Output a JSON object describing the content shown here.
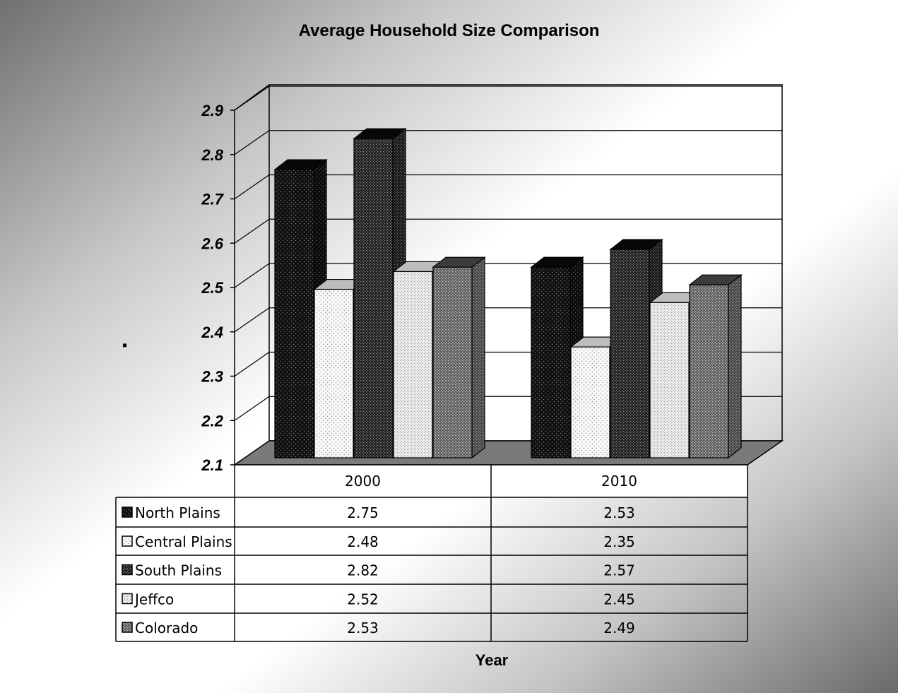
{
  "chart_data": {
    "type": "bar",
    "title": "Average Household Size Comparison",
    "xlabel": "Year",
    "ylabel": "",
    "categories": [
      "2000",
      "2010"
    ],
    "series": [
      {
        "name": "North Plains",
        "values": [
          2.75,
          2.53
        ],
        "pattern": "dark-dots"
      },
      {
        "name": "Central Plains",
        "values": [
          2.48,
          2.35
        ],
        "pattern": "light-dots"
      },
      {
        "name": "South Plains",
        "values": [
          2.82,
          2.57
        ],
        "pattern": "dark-grid"
      },
      {
        "name": "Jeffco",
        "values": [
          2.52,
          2.45
        ],
        "pattern": "light-grid"
      },
      {
        "name": "Colorado",
        "values": [
          2.53,
          2.49
        ],
        "pattern": "mid-grid"
      }
    ],
    "value_labels": [
      [
        "2.75",
        "2.53"
      ],
      [
        "2.48",
        "2.35"
      ],
      [
        "2.82",
        "2.57"
      ],
      [
        "2.52",
        "2.45"
      ],
      [
        "2.53",
        "2.49"
      ]
    ],
    "ylim": [
      2.1,
      2.9
    ],
    "yticks": [
      "2.1",
      "2.2",
      "2.3",
      "2.4",
      "2.5",
      "2.6",
      "2.7",
      "2.8",
      "2.9"
    ],
    "grid": true,
    "legend": "data-table",
    "colors": {
      "background_dark": "#6e6e6e",
      "background_light": "#ffffff",
      "floor": "#7a7a7a",
      "bar_dark": "#141414",
      "bar_light": "#f5f5f5",
      "bar_mid": "#6a6a6a"
    }
  }
}
